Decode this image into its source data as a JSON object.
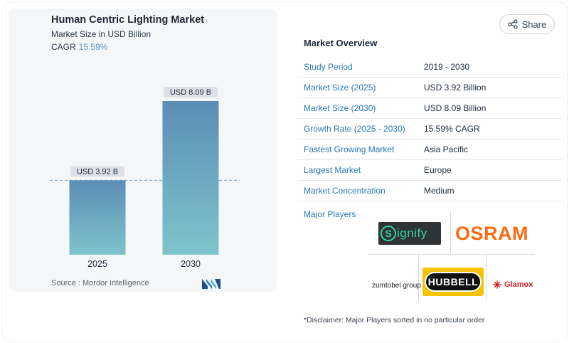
{
  "chart_data": {
    "type": "bar",
    "title": "Human Centric Lighting Market",
    "subtitle": "Market Size in USD Billion",
    "cagr_label": "CAGR",
    "cagr_value": "15.59%",
    "categories": [
      "2025",
      "2030"
    ],
    "values": [
      3.92,
      8.09
    ],
    "data_labels": [
      "USD 3.92 B",
      "USD 8.09 B"
    ],
    "ylim": [
      0,
      8.09
    ],
    "grid": false,
    "reference_line": 3.92,
    "colors": {
      "bar_top": "#5b8db5",
      "bar_bottom": "#7ec4cc",
      "label_bg": "#dde1e5",
      "ref_line": "#6a9fc0"
    }
  },
  "source": "Source :  Mordor Intelligence",
  "share_label": "Share",
  "overview": {
    "title": "Market Overview",
    "rows": [
      {
        "label": "Study Period",
        "value": "2019 - 2030"
      },
      {
        "label": "Market Size (2025)",
        "value": "USD 3.92 Billion"
      },
      {
        "label": "Market Size (2030)",
        "value": "USD 8.09 Billion"
      },
      {
        "label": "Growth Rate (2025 - 2030)",
        "value": "15.59% CAGR"
      },
      {
        "label": "Fastest Growing Market",
        "value": "Asia Pacific"
      },
      {
        "label": "Largest Market",
        "value": "Europe"
      },
      {
        "label": "Market Concentration",
        "value": "Medium"
      }
    ]
  },
  "players": {
    "label": "Major Players",
    "logos": {
      "signify": "ignify",
      "signify_s": "S",
      "osram": "OSRAM",
      "zumtobel": "zumtobel group",
      "hubbell": "HUBBELL",
      "glamox": "Glamox"
    }
  },
  "disclaimer": "*Disclaimer: Major Players sorted in no particular order",
  "icons": {
    "share": "share-icon",
    "brand": "mordor-logo-icon",
    "glamox": "glamox-star-icon"
  }
}
